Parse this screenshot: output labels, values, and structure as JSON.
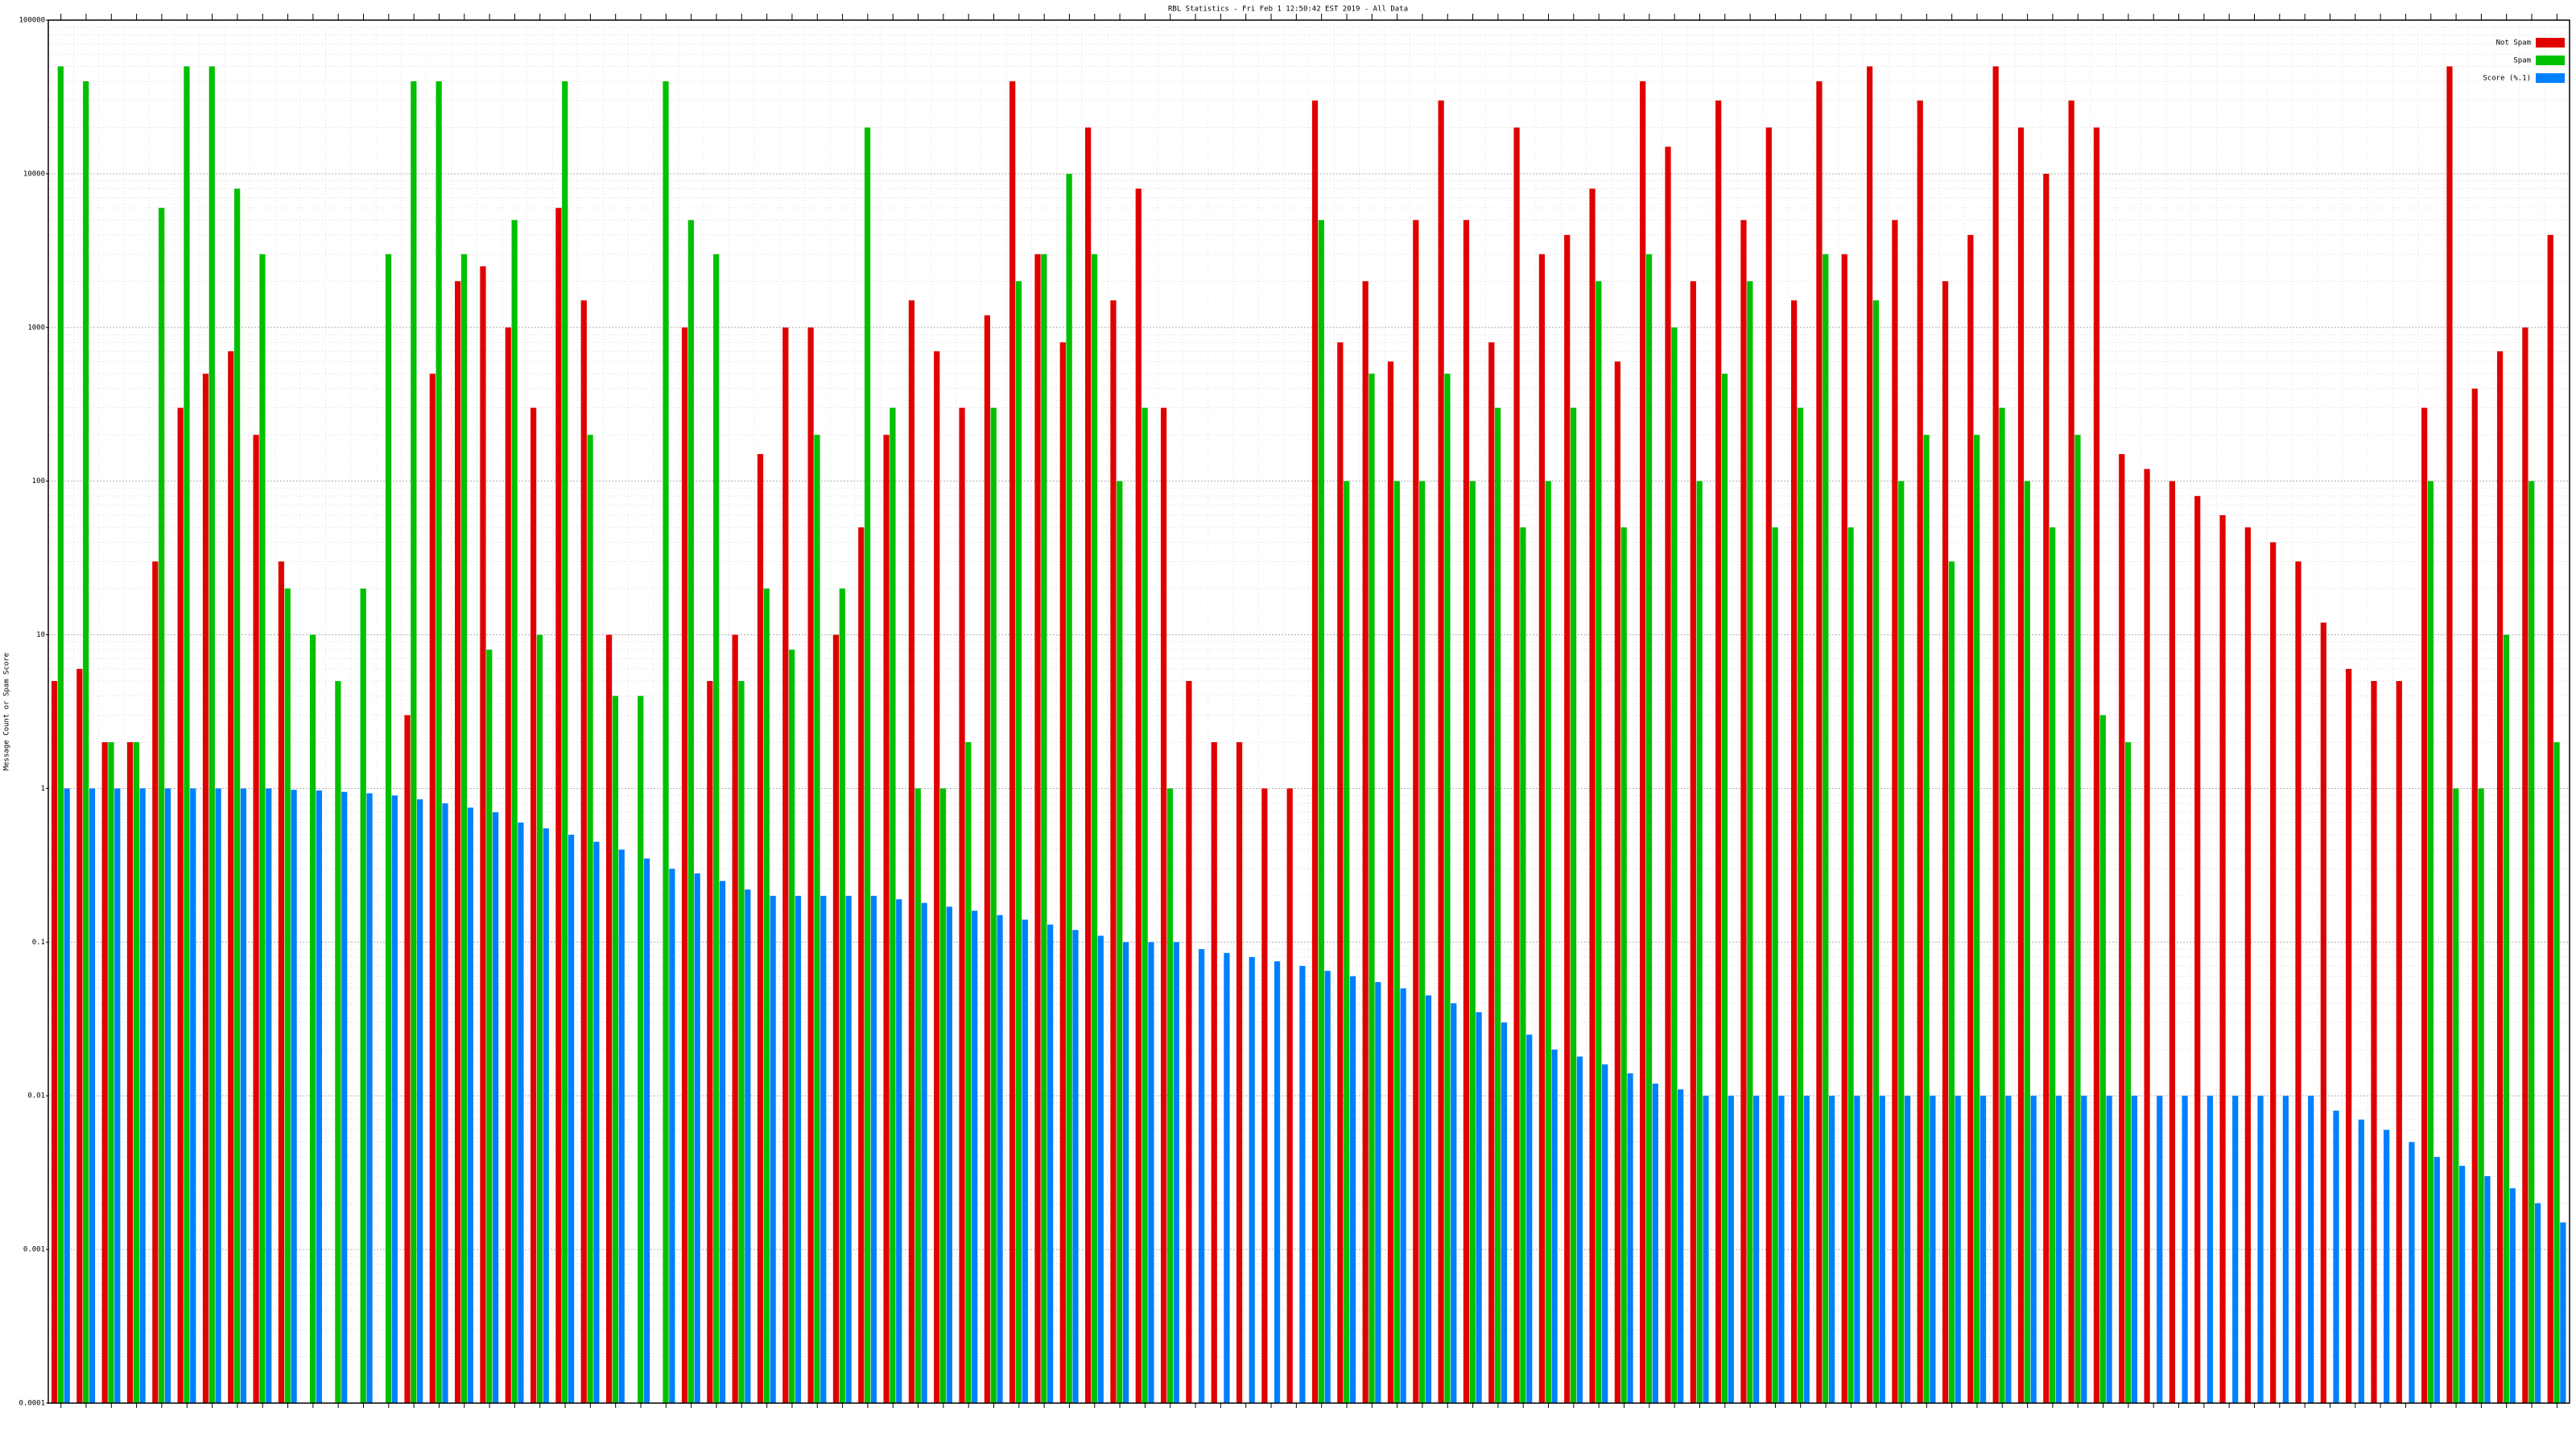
{
  "chart_data": {
    "type": "bar",
    "title": "RBL Statistics - Fri Feb  1 12:50:42 EST 2019 - All Data",
    "y_label": "Message Count or Spam Score",
    "log_y": true,
    "grid": true,
    "legend": "top-right",
    "ylim": [
      0.0001,
      100000
    ],
    "yticks": [
      0.0001,
      0.001,
      0.01,
      0.1,
      1,
      10,
      100,
      1000,
      10000,
      100000
    ],
    "categories": [
      null,
      null,
      null,
      null,
      null,
      null,
      null,
      null,
      null,
      null,
      null,
      null,
      null,
      null,
      null,
      null,
      null,
      null,
      null,
      null,
      null,
      null,
      null,
      null,
      null,
      null,
      null,
      null,
      null,
      null,
      null,
      null,
      null,
      null,
      null,
      null,
      null,
      null,
      null,
      null,
      null,
      null,
      null,
      null,
      null,
      null,
      null,
      null,
      null,
      null,
      null,
      null,
      null,
      null,
      null,
      null,
      null,
      null,
      null,
      null,
      null,
      null,
      null,
      null,
      null,
      null,
      null,
      null,
      null,
      null,
      null,
      null,
      null,
      null,
      null,
      null,
      null,
      null,
      null,
      null,
      null,
      null,
      null,
      null,
      null,
      null,
      null,
      null,
      null,
      null,
      null,
      null,
      null,
      null,
      null,
      null,
      null,
      null,
      null,
      null
    ],
    "series": [
      {
        "name": "Not Spam",
        "color": "#e00000",
        "values": [
          5,
          6,
          2,
          2,
          30,
          300,
          500,
          700,
          200,
          30,
          null,
          null,
          null,
          null,
          3,
          500,
          2000,
          2500,
          1000,
          300,
          6000,
          1500,
          10,
          null,
          null,
          1000,
          5,
          10,
          150,
          1000,
          1000,
          10,
          50,
          200,
          1500,
          700,
          300,
          1200,
          40000,
          3000,
          800,
          20000,
          1500,
          8000,
          300,
          5,
          2,
          2,
          1,
          1,
          30000,
          800,
          2000,
          600,
          5000,
          30000,
          5000,
          800,
          20000,
          3000,
          4000,
          8000,
          600,
          40000,
          15000,
          2000,
          30000,
          5000,
          20000,
          1500,
          40000,
          3000,
          50000,
          5000,
          30000,
          2000,
          4000,
          50000,
          20000,
          10000,
          30000,
          20000,
          150,
          120,
          100,
          80,
          60,
          50,
          40,
          30,
          12,
          6,
          5,
          5,
          300,
          50000,
          400,
          700,
          1000,
          4000
        ]
      },
      {
        "name": "Spam",
        "color": "#00c000",
        "values": [
          50000,
          40000,
          2,
          2,
          6000,
          50000,
          50000,
          8000,
          3000,
          20,
          10,
          5,
          20,
          3000,
          40000,
          40000,
          3000,
          8,
          5000,
          10,
          40000,
          200,
          4,
          4,
          40000,
          5000,
          3000,
          5,
          20,
          8,
          200,
          20,
          20000,
          300,
          1,
          1,
          2,
          300,
          2000,
          3000,
          10000,
          3000,
          100,
          300,
          1,
          null,
          null,
          null,
          null,
          null,
          5000,
          100,
          500,
          100,
          100,
          500,
          100,
          300,
          50,
          100,
          300,
          2000,
          50,
          3000,
          1000,
          100,
          500,
          2000,
          50,
          300,
          3000,
          50,
          1500,
          100,
          200,
          30,
          200,
          300,
          100,
          50,
          200,
          3,
          2,
          null,
          null,
          null,
          null,
          null,
          null,
          null,
          null,
          null,
          null,
          null,
          100,
          1,
          1,
          10,
          100,
          2
        ]
      },
      {
        "name": "Score (%.1)",
        "color": "#0080ff",
        "values": [
          1,
          1,
          1,
          1,
          1,
          1,
          1,
          1,
          1,
          0.98,
          0.97,
          0.95,
          0.93,
          0.9,
          0.85,
          0.8,
          0.75,
          0.7,
          0.6,
          0.55,
          0.5,
          0.45,
          0.4,
          0.35,
          0.3,
          0.28,
          0.25,
          0.22,
          0.2,
          0.2,
          0.2,
          0.2,
          0.2,
          0.19,
          0.18,
          0.17,
          0.16,
          0.15,
          0.14,
          0.13,
          0.12,
          0.11,
          0.1,
          0.1,
          0.1,
          0.09,
          0.085,
          0.08,
          0.075,
          0.07,
          0.065,
          0.06,
          0.055,
          0.05,
          0.045,
          0.04,
          0.035,
          0.03,
          0.025,
          0.02,
          0.018,
          0.016,
          0.014,
          0.012,
          0.011,
          0.01,
          0.01,
          0.01,
          0.01,
          0.01,
          0.01,
          0.01,
          0.01,
          0.01,
          0.01,
          0.01,
          0.01,
          0.01,
          0.01,
          0.01,
          0.01,
          0.01,
          0.01,
          0.01,
          0.01,
          0.01,
          0.01,
          0.01,
          0.01,
          0.01,
          0.008,
          0.007,
          0.006,
          0.005,
          0.004,
          0.0035,
          0.003,
          0.0025,
          0.002,
          0.0015
        ]
      }
    ]
  }
}
